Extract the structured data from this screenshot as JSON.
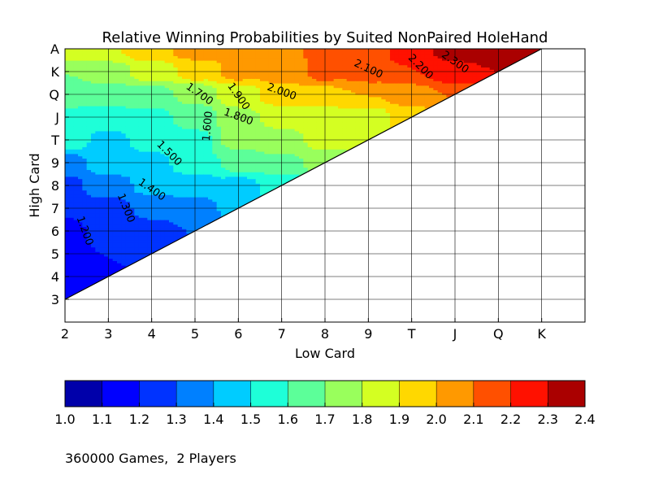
{
  "chart_data": {
    "type": "contourf",
    "title": "Relative Winning Probabilities by Suited NonPaired HoleHand",
    "xlabel": "Low Card",
    "ylabel": "High Card",
    "x_ticks": [
      "2",
      "3",
      "4",
      "5",
      "6",
      "7",
      "8",
      "9",
      "T",
      "J",
      "Q",
      "K"
    ],
    "y_ticks": [
      "3",
      "4",
      "5",
      "6",
      "7",
      "8",
      "9",
      "T",
      "J",
      "Q",
      "K",
      "A"
    ],
    "xlim": [
      2,
      14
    ],
    "ylim": [
      2,
      14
    ],
    "grid": true,
    "colorbar": {
      "levels": [
        1.0,
        1.1,
        1.2,
        1.3,
        1.4,
        1.5,
        1.6,
        1.7,
        1.8,
        1.9,
        2.0,
        2.1,
        2.2,
        2.3,
        2.4
      ],
      "tick_labels": [
        "1.0",
        "1.1",
        "1.2",
        "1.3",
        "1.4",
        "1.5",
        "1.6",
        "1.7",
        "1.8",
        "1.9",
        "2.0",
        "2.1",
        "2.2",
        "2.3",
        "2.4"
      ],
      "colors": [
        "#0000aa",
        "#0000ff",
        "#0033ff",
        "#0080ff",
        "#00ccff",
        "#1effd8",
        "#5cff99",
        "#99ff5c",
        "#d4ff22",
        "#ffd800",
        "#ff9900",
        "#ff5000",
        "#ff1100",
        "#aa0000"
      ]
    },
    "contour_labels": [
      {
        "text": "1.200",
        "x": 2.45,
        "y": 6.0,
        "angle": 70
      },
      {
        "text": "1.300",
        "x": 3.4,
        "y": 7.0,
        "angle": 68
      },
      {
        "text": "1.400",
        "x": 4.0,
        "y": 7.8,
        "angle": 35
      },
      {
        "text": "1.500",
        "x": 4.4,
        "y": 9.4,
        "angle": 45
      },
      {
        "text": "1.600",
        "x": 5.3,
        "y": 10.6,
        "angle": -85
      },
      {
        "text": "1.700",
        "x": 5.1,
        "y": 12.0,
        "angle": 35
      },
      {
        "text": "1.800",
        "x": 6.0,
        "y": 11.0,
        "angle": 20
      },
      {
        "text": "1.900",
        "x": 6.0,
        "y": 11.9,
        "angle": 55
      },
      {
        "text": "2.000",
        "x": 7.0,
        "y": 12.1,
        "angle": 20
      },
      {
        "text": "2.100",
        "x": 9.0,
        "y": 13.1,
        "angle": 25
      },
      {
        "text": "2.200",
        "x": 10.2,
        "y": 13.2,
        "angle": 45
      },
      {
        "text": "2.300",
        "x": 11.0,
        "y": 13.4,
        "angle": 35
      }
    ],
    "grid_values": {
      "3": {
        "2": 1.15
      },
      "4": {
        "2": 1.15,
        "3": 1.18
      },
      "5": {
        "2": 1.18,
        "3": 1.2,
        "4": 1.24
      },
      "6": {
        "2": 1.18,
        "3": 1.22,
        "4": 1.26,
        "5": 1.3
      },
      "7": {
        "2": 1.2,
        "3": 1.25,
        "4": 1.32,
        "5": 1.36,
        "6": 1.42
      },
      "8": {
        "2": 1.28,
        "3": 1.35,
        "4": 1.42,
        "5": 1.45,
        "6": 1.48,
        "7": 1.52
      },
      "9": {
        "2": 1.35,
        "3": 1.45,
        "4": 1.48,
        "5": 1.55,
        "6": 1.62,
        "7": 1.68,
        "8": 1.72
      },
      "10": {
        "2": 1.55,
        "3": 1.48,
        "4": 1.52,
        "5": 1.58,
        "6": 1.72,
        "7": 1.78,
        "8": 1.82,
        "9": 1.85
      },
      "11": {
        "2": 1.6,
        "3": 1.55,
        "4": 1.58,
        "5": 1.62,
        "6": 1.78,
        "7": 1.82,
        "8": 1.85,
        "9": 1.85,
        "10": 1.95
      },
      "12": {
        "2": 1.6,
        "3": 1.65,
        "4": 1.65,
        "5": 1.72,
        "6": 1.85,
        "7": 1.95,
        "8": 1.98,
        "9": 2.0,
        "10": 2.05,
        "11": 2.1
      },
      "13": {
        "2": 1.7,
        "3": 1.75,
        "4": 1.85,
        "5": 1.92,
        "6": 2.02,
        "7": 2.05,
        "8": 2.12,
        "9": 2.15,
        "10": 2.2,
        "11": 2.28,
        "12": 2.3
      },
      "14": {
        "2": 1.85,
        "3": 1.9,
        "4": 1.98,
        "5": 2.05,
        "6": 2.08,
        "7": 2.05,
        "8": 2.15,
        "9": 2.18,
        "10": 2.25,
        "11": 2.35,
        "12": 2.38,
        "13": 2.38
      }
    }
  },
  "footer": {
    "note": "360000 Games,  2 Players"
  }
}
